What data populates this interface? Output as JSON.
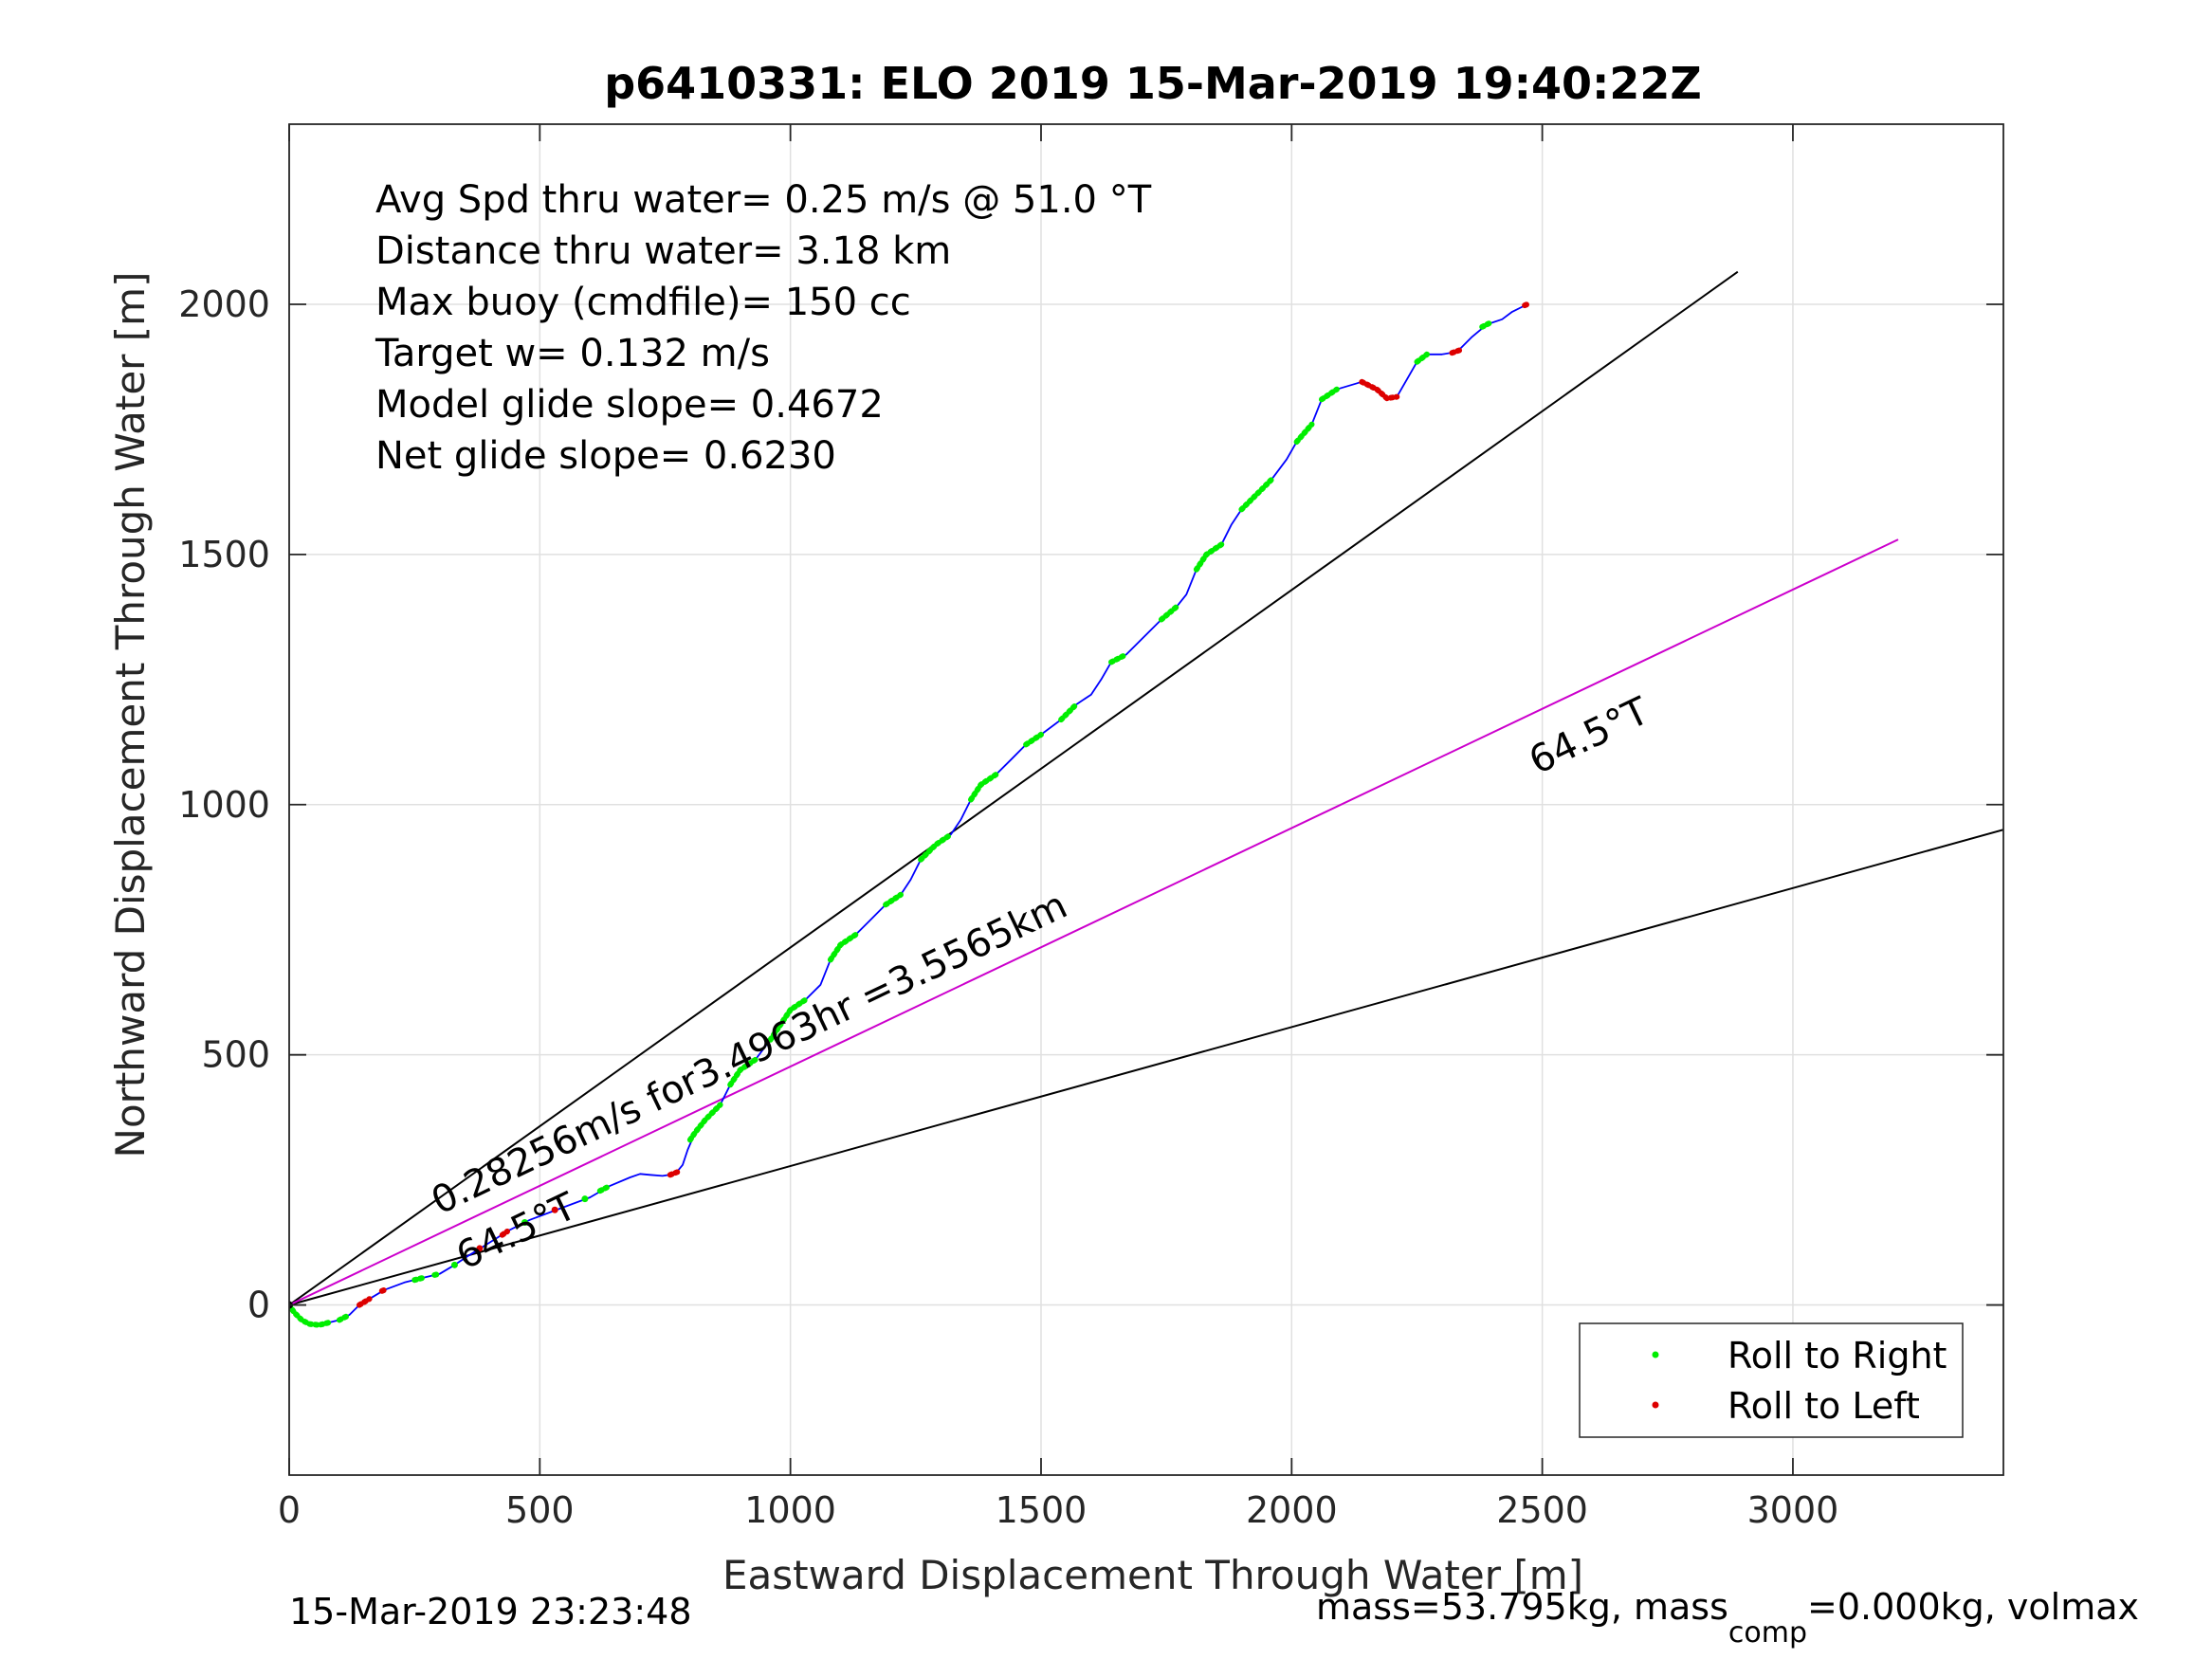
{
  "chart_data": {
    "type": "line",
    "title": "p6410331: ELO 2019 15-Mar-2019 19:40:22Z",
    "xlabel": "Eastward Displacement Through Water [m]",
    "ylabel": "Northward Displacement Through Water [m]",
    "xlim": [
      0,
      3420
    ],
    "ylim": [
      -340,
      2360
    ],
    "grid": true,
    "xticks": [
      {
        "v": 0,
        "label": "0"
      },
      {
        "v": 500,
        "label": "500"
      },
      {
        "v": 1000,
        "label": "1000"
      },
      {
        "v": 1500,
        "label": "1500"
      },
      {
        "v": 2000,
        "label": "2000"
      },
      {
        "v": 2500,
        "label": "2500"
      },
      {
        "v": 3000,
        "label": "3000"
      }
    ],
    "yticks": [
      {
        "v": 0,
        "label": "0"
      },
      {
        "v": 500,
        "label": "500"
      },
      {
        "v": 1000,
        "label": "1000"
      },
      {
        "v": 1500,
        "label": "1500"
      },
      {
        "v": 2000,
        "label": "2000"
      }
    ],
    "stats": [
      "Avg Spd thru water=  0.25 m/s @  51.0 °T",
      "Distance thru water=  3.18 km",
      "Max buoy (cmdfile)= 150 cc",
      "Target w= 0.132 m/s",
      "Model glide slope= 0.4672",
      "Net glide slope= 0.6230"
    ],
    "colors": {
      "track": "#0000ff",
      "target_line": "#cc00cc",
      "wedge": "#000000",
      "roll_right": "#00ee00",
      "roll_left": "#dd0000",
      "grid": "#e0e0e0"
    },
    "track": [
      [
        0,
        0
      ],
      [
        10,
        -15
      ],
      [
        25,
        -30
      ],
      [
        40,
        -38
      ],
      [
        60,
        -40
      ],
      [
        80,
        -35
      ],
      [
        100,
        -30
      ],
      [
        120,
        -20
      ],
      [
        140,
        0
      ],
      [
        160,
        12
      ],
      [
        190,
        30
      ],
      [
        230,
        45
      ],
      [
        270,
        55
      ],
      [
        300,
        62
      ],
      [
        330,
        80
      ],
      [
        360,
        100
      ],
      [
        400,
        125
      ],
      [
        440,
        150
      ],
      [
        480,
        170
      ],
      [
        520,
        185
      ],
      [
        560,
        200
      ],
      [
        600,
        215
      ],
      [
        640,
        238
      ],
      [
        680,
        255
      ],
      [
        700,
        262
      ],
      [
        720,
        260
      ],
      [
        745,
        258
      ],
      [
        770,
        262
      ],
      [
        785,
        280
      ],
      [
        795,
        310
      ],
      [
        810,
        345
      ],
      [
        830,
        370
      ],
      [
        860,
        400
      ],
      [
        880,
        440
      ],
      [
        900,
        470
      ],
      [
        930,
        490
      ],
      [
        960,
        530
      ],
      [
        980,
        560
      ],
      [
        1000,
        590
      ],
      [
        1030,
        610
      ],
      [
        1060,
        640
      ],
      [
        1080,
        690
      ],
      [
        1100,
        720
      ],
      [
        1130,
        740
      ],
      [
        1160,
        770
      ],
      [
        1190,
        800
      ],
      [
        1220,
        820
      ],
      [
        1240,
        850
      ],
      [
        1260,
        890
      ],
      [
        1290,
        920
      ],
      [
        1320,
        940
      ],
      [
        1340,
        970
      ],
      [
        1360,
        1010
      ],
      [
        1380,
        1040
      ],
      [
        1410,
        1060
      ],
      [
        1440,
        1090
      ],
      [
        1470,
        1120
      ],
      [
        1500,
        1140
      ],
      [
        1540,
        1170
      ],
      [
        1570,
        1200
      ],
      [
        1600,
        1220
      ],
      [
        1620,
        1250
      ],
      [
        1640,
        1285
      ],
      [
        1670,
        1300
      ],
      [
        1700,
        1330
      ],
      [
        1740,
        1370
      ],
      [
        1770,
        1395
      ],
      [
        1790,
        1420
      ],
      [
        1810,
        1470
      ],
      [
        1830,
        1500
      ],
      [
        1860,
        1520
      ],
      [
        1880,
        1560
      ],
      [
        1900,
        1590
      ],
      [
        1930,
        1620
      ],
      [
        1960,
        1650
      ],
      [
        1990,
        1690
      ],
      [
        2010,
        1725
      ],
      [
        2040,
        1760
      ],
      [
        2060,
        1810
      ],
      [
        2090,
        1830
      ],
      [
        2140,
        1845
      ],
      [
        2170,
        1830
      ],
      [
        2190,
        1812
      ],
      [
        2210,
        1815
      ],
      [
        2230,
        1850
      ],
      [
        2250,
        1885
      ],
      [
        2270,
        1900
      ],
      [
        2300,
        1900
      ],
      [
        2330,
        1905
      ],
      [
        2360,
        1935
      ],
      [
        2390,
        1960
      ],
      [
        2420,
        1970
      ],
      [
        2440,
        1985
      ],
      [
        2470,
        2000
      ]
    ],
    "roll_right_segments": [
      [
        [
          0,
          0
        ],
        [
          10,
          -15
        ],
        [
          25,
          -30
        ],
        [
          40,
          -38
        ],
        [
          60,
          -40
        ],
        [
          80,
          -35
        ]
      ],
      [
        [
          100,
          -30
        ],
        [
          120,
          -20
        ]
      ],
      [
        [
          250,
          50
        ],
        [
          270,
          55
        ]
      ],
      [
        [
          290,
          60
        ],
        [
          300,
          62
        ]
      ],
      [
        [
          620,
          228
        ],
        [
          640,
          238
        ]
      ],
      [
        [
          800,
          330
        ],
        [
          810,
          345
        ],
        [
          830,
          370
        ],
        [
          860,
          400
        ]
      ],
      [
        [
          880,
          440
        ],
        [
          900,
          470
        ],
        [
          930,
          490
        ]
      ],
      [
        [
          960,
          530
        ],
        [
          980,
          560
        ],
        [
          1000,
          590
        ],
        [
          1030,
          610
        ]
      ],
      [
        [
          1080,
          690
        ],
        [
          1100,
          720
        ],
        [
          1130,
          740
        ]
      ],
      [
        [
          1190,
          800
        ],
        [
          1220,
          820
        ]
      ],
      [
        [
          1260,
          890
        ],
        [
          1290,
          920
        ],
        [
          1320,
          940
        ]
      ],
      [
        [
          1360,
          1010
        ],
        [
          1380,
          1040
        ],
        [
          1410,
          1060
        ]
      ],
      [
        [
          1470,
          1120
        ],
        [
          1500,
          1140
        ]
      ],
      [
        [
          1540,
          1170
        ],
        [
          1570,
          1200
        ]
      ],
      [
        [
          1640,
          1285
        ],
        [
          1670,
          1300
        ]
      ],
      [
        [
          1740,
          1370
        ],
        [
          1770,
          1395
        ]
      ],
      [
        [
          1810,
          1470
        ],
        [
          1830,
          1500
        ],
        [
          1860,
          1520
        ]
      ],
      [
        [
          1900,
          1590
        ],
        [
          1930,
          1620
        ],
        [
          1960,
          1650
        ]
      ],
      [
        [
          2010,
          1725
        ],
        [
          2040,
          1760
        ]
      ],
      [
        [
          2060,
          1810
        ],
        [
          2090,
          1830
        ]
      ],
      [
        [
          2250,
          1885
        ],
        [
          2270,
          1900
        ]
      ],
      [
        [
          2380,
          1955
        ],
        [
          2400,
          1965
        ]
      ]
    ],
    "roll_left_segments": [
      [
        [
          140,
          0
        ],
        [
          150,
          6
        ],
        [
          160,
          12
        ]
      ],
      [
        [
          185,
          28
        ],
        [
          195,
          32
        ]
      ],
      [
        [
          425,
          140
        ],
        [
          435,
          147
        ]
      ],
      [
        [
          760,
          260
        ],
        [
          775,
          266
        ]
      ],
      [
        [
          2140,
          1845
        ],
        [
          2160,
          1835
        ],
        [
          2170,
          1830
        ],
        [
          2190,
          1812
        ],
        [
          2210,
          1815
        ]
      ],
      [
        [
          2320,
          1903
        ],
        [
          2340,
          1910
        ]
      ],
      [
        [
          2465,
          1998
        ],
        [
          2475,
          2002
        ]
      ]
    ],
    "roll_points_right": [
      [
        330,
        80
      ],
      [
        470,
        165
      ],
      [
        590,
        212
      ]
    ],
    "roll_points_left": [
      [
        380,
        113
      ],
      [
        530,
        190
      ]
    ],
    "wedge_lines": [
      [
        [
          0,
          0
        ],
        [
          2890,
          2065
        ]
      ],
      [
        [
          0,
          0
        ],
        [
          3420,
          950
        ]
      ]
    ],
    "target_line": [
      [
        0,
        0
      ],
      [
        3210,
        1530
      ]
    ],
    "annotations": [
      {
        "text": "0.28256m/s for3.4963hr =3.5565km",
        "x": 300,
        "y": 180,
        "angle": 25.5
      },
      {
        "text": "64.5°T",
        "x": 350,
        "y": 70,
        "angle": 25.5
      },
      {
        "text": "64.5°T",
        "x": 2490,
        "y": 1060,
        "angle": 25.5
      }
    ],
    "legend": {
      "placement": "bottom-right",
      "entries": [
        {
          "label": "Roll to Right",
          "color": "#00ee00"
        },
        {
          "label": "Roll to Left",
          "color": "#dd0000"
        }
      ]
    }
  },
  "footer": {
    "left": "15-Mar-2019 23:23:48",
    "right_main": "mass=53.795kg, mass",
    "right_sub": "comp",
    "right_rest": "=0.000kg, volmax"
  }
}
